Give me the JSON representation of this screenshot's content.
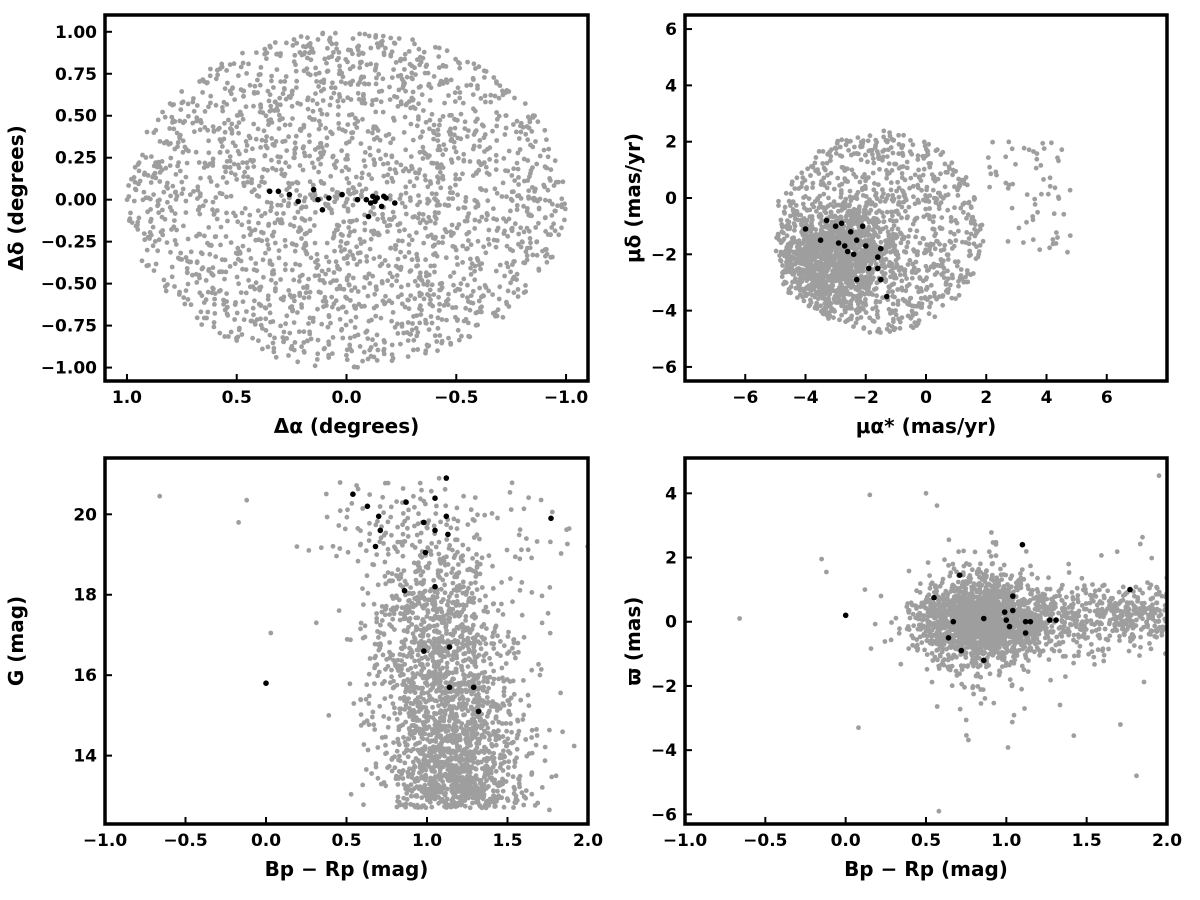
{
  "colors": {
    "background_stars": "#9e9e9e",
    "members": "#000000",
    "frame": "#000000"
  },
  "chart_data": [
    {
      "type": "scatter",
      "xlabel": "Δα (degrees)",
      "ylabel": "Δδ (degrees)",
      "xlim": [
        1.1,
        -1.1
      ],
      "ylim": [
        -1.08,
        1.1
      ],
      "x_ticks": [
        1.0,
        0.5,
        0.0,
        -0.5,
        -1.0
      ],
      "x_tick_labels": [
        "1.0",
        "0.5",
        "0.0",
        "−0.5",
        "−1.0"
      ],
      "y_ticks": [
        1.0,
        0.75,
        0.5,
        0.25,
        0.0,
        -0.25,
        -0.5,
        -0.75,
        -1.0
      ],
      "y_tick_labels": [
        "1.00",
        "0.75",
        "0.50",
        "0.25",
        "0.00",
        "−0.25",
        "−0.50",
        "−0.75",
        "−1.00"
      ],
      "grid": false,
      "field_stars": {
        "color": "#9e9e9e",
        "distribution": "uniform disk",
        "center": [
          0,
          0
        ],
        "radius": 1.0,
        "count": 2200
      },
      "members": {
        "color": "#000000",
        "points": [
          [
            0.35,
            0.05
          ],
          [
            0.31,
            0.05
          ],
          [
            0.26,
            0.03
          ],
          [
            0.22,
            -0.01
          ],
          [
            0.15,
            0.06
          ],
          [
            0.13,
            0.0
          ],
          [
            0.11,
            -0.06
          ],
          [
            0.08,
            0.01
          ],
          [
            0.02,
            0.03
          ],
          [
            -0.09,
            0.0
          ],
          [
            -0.11,
            -0.02
          ],
          [
            -0.12,
            0.02
          ],
          [
            -0.13,
            -0.01
          ],
          [
            -0.14,
            0.01
          ],
          [
            -0.16,
            -0.04
          ],
          [
            -0.18,
            0.01
          ],
          [
            -0.22,
            -0.02
          ],
          [
            -0.1,
            -0.1
          ],
          [
            -0.05,
            0.0
          ],
          [
            -0.17,
            0.02
          ]
        ]
      }
    },
    {
      "type": "scatter",
      "xlabel": "μα* (mas/yr)",
      "ylabel": "μδ (mas/yr)",
      "xlim": [
        -8,
        8
      ],
      "ylim": [
        -6.5,
        6.5
      ],
      "x_ticks": [
        -6,
        -4,
        -2,
        0,
        2,
        4,
        6
      ],
      "x_tick_labels": [
        "−6",
        "−4",
        "−2",
        "0",
        "2",
        "4",
        "6"
      ],
      "y_ticks": [
        6,
        4,
        2,
        0,
        -2,
        -4,
        -6
      ],
      "y_tick_labels": [
        "6",
        "4",
        "2",
        "0",
        "−2",
        "−4",
        "−6"
      ],
      "grid": false,
      "field_stars": {
        "color": "#9e9e9e",
        "distribution": "disk plus dense core",
        "center": [
          -1.5,
          -1.2
        ],
        "radius": 3.6,
        "core_center": [
          -3.0,
          -2.0
        ],
        "count": 2200
      },
      "members": {
        "color": "#000000",
        "points": [
          [
            -4.0,
            -1.1
          ],
          [
            -3.3,
            -0.8
          ],
          [
            -3.5,
            -1.5
          ],
          [
            -3.0,
            -1.0
          ],
          [
            -2.8,
            -0.9
          ],
          [
            -2.5,
            -1.2
          ],
          [
            -2.3,
            -1.5
          ],
          [
            -2.7,
            -1.7
          ],
          [
            -2.6,
            -1.9
          ],
          [
            -2.4,
            -2.0
          ],
          [
            -2.1,
            -1.0
          ],
          [
            -2.0,
            -1.7
          ],
          [
            -1.9,
            -2.5
          ],
          [
            -1.6,
            -2.1
          ],
          [
            -1.5,
            -1.8
          ],
          [
            -1.6,
            -2.5
          ],
          [
            -2.3,
            -2.9
          ],
          [
            -1.5,
            -2.9
          ],
          [
            -1.3,
            -3.5
          ],
          [
            -2.9,
            -1.6
          ]
        ]
      }
    },
    {
      "type": "scatter",
      "xlabel": "Bp − Rp (mag)",
      "ylabel": "G (mag)",
      "xlim": [
        -1.0,
        2.0
      ],
      "ylim": [
        12.3,
        21.4
      ],
      "x_ticks": [
        -1.0,
        -0.5,
        0.0,
        0.5,
        1.0,
        1.5,
        2.0
      ],
      "x_tick_labels": [
        "−1.0",
        "−0.5",
        "0.0",
        "0.5",
        "1.0",
        "1.5",
        "2.0"
      ],
      "y_ticks": [
        14,
        16,
        18,
        20
      ],
      "y_tick_labels": [
        "14",
        "16",
        "18",
        "20"
      ],
      "grid": false,
      "field_stars": {
        "color": "#9e9e9e",
        "distribution": "color-magnitude diagram",
        "count": 2200
      },
      "members": {
        "color": "#000000",
        "points": [
          [
            0.54,
            20.5
          ],
          [
            0.63,
            20.2
          ],
          [
            0.7,
            19.95
          ],
          [
            0.87,
            20.3
          ],
          [
            1.05,
            20.4
          ],
          [
            1.12,
            20.9
          ],
          [
            0.98,
            19.8
          ],
          [
            1.05,
            19.6
          ],
          [
            1.12,
            19.95
          ],
          [
            1.13,
            19.5
          ],
          [
            0.68,
            19.2
          ],
          [
            0.71,
            19.6
          ],
          [
            0.99,
            19.05
          ],
          [
            1.77,
            19.9
          ],
          [
            0.86,
            18.1
          ],
          [
            1.05,
            18.2
          ],
          [
            0.0,
            15.8
          ],
          [
            0.98,
            16.6
          ],
          [
            1.14,
            16.7
          ],
          [
            1.14,
            15.7
          ],
          [
            1.29,
            15.7
          ],
          [
            1.32,
            15.1
          ]
        ]
      }
    },
    {
      "type": "scatter",
      "xlabel": "Bp − Rp (mag)",
      "ylabel": "ϖ (mas)",
      "xlim": [
        -1.0,
        2.0
      ],
      "ylim": [
        -6.3,
        5.1
      ],
      "x_ticks": [
        -1.0,
        -0.5,
        0.0,
        0.5,
        1.0,
        1.5,
        2.0
      ],
      "x_tick_labels": [
        "−1.0",
        "−0.5",
        "0.0",
        "0.5",
        "1.0",
        "1.5",
        "2.0"
      ],
      "y_ticks": [
        4,
        2,
        0,
        -2,
        -4,
        -6
      ],
      "y_tick_labels": [
        "4",
        "2",
        "0",
        "−2",
        "−4",
        "−6"
      ],
      "grid": false,
      "field_stars": {
        "color": "#9e9e9e",
        "distribution": "color-parallax cloud",
        "count": 2200
      },
      "members": {
        "color": "#000000",
        "points": [
          [
            0.0,
            0.2
          ],
          [
            0.55,
            0.75
          ],
          [
            0.64,
            -0.5
          ],
          [
            0.67,
            0.0
          ],
          [
            0.71,
            1.45
          ],
          [
            0.72,
            -0.9
          ],
          [
            0.86,
            0.1
          ],
          [
            0.86,
            -1.2
          ],
          [
            0.99,
            0.3
          ],
          [
            1.0,
            0.05
          ],
          [
            1.02,
            -0.15
          ],
          [
            1.04,
            0.35
          ],
          [
            1.04,
            0.8
          ],
          [
            1.1,
            2.4
          ],
          [
            1.12,
            0.0
          ],
          [
            1.15,
            0.0
          ],
          [
            1.12,
            -0.35
          ],
          [
            1.27,
            0.05
          ],
          [
            1.31,
            0.05
          ],
          [
            1.77,
            1.0
          ]
        ]
      }
    }
  ]
}
